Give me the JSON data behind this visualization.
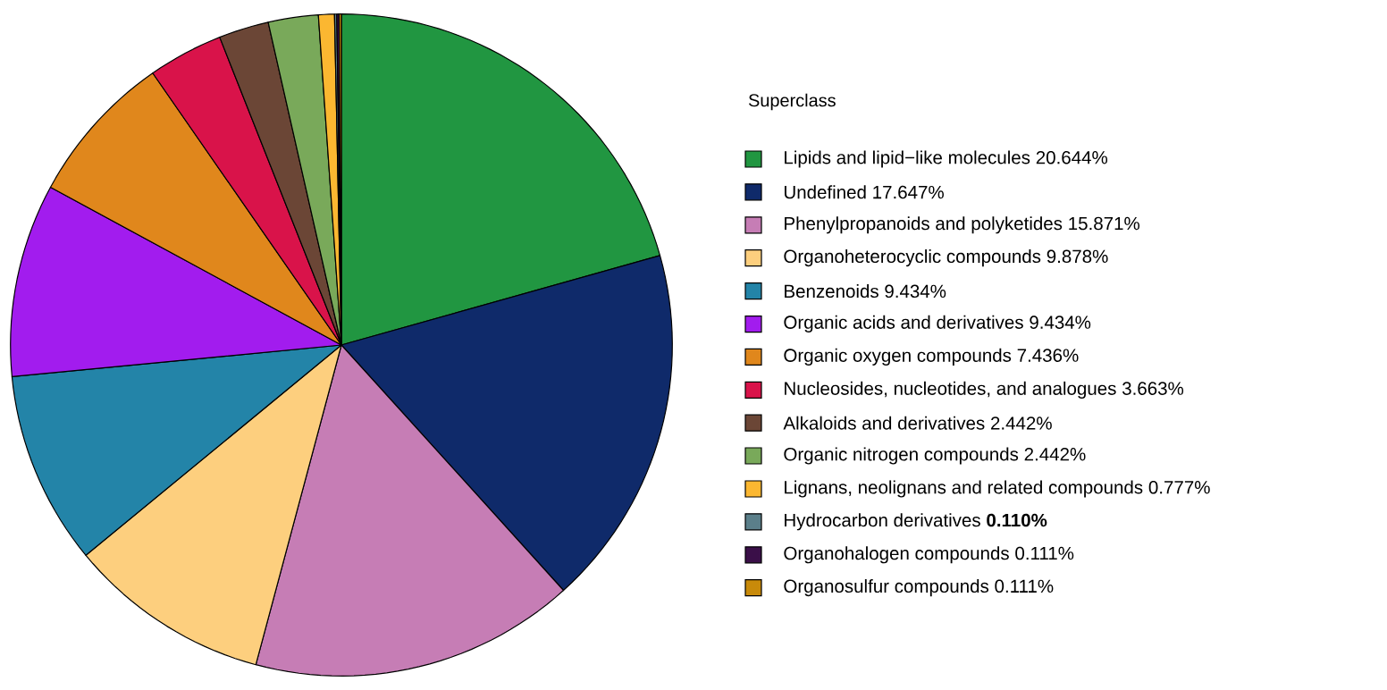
{
  "chart_data": {
    "type": "pie",
    "legend_title": "Superclass",
    "legend": "right",
    "categories": [
      "Lipids and lipid−like molecules",
      "Undefined",
      "Phenylpropanoids and polyketides",
      "Organoheterocyclic compounds",
      "Benzenoids",
      "Organic acids and derivatives",
      "Organic oxygen compounds",
      "Nucleosides, nucleotides, and analogues",
      "Alkaloids and derivatives",
      "Organic nitrogen compounds",
      "Lignans, neolignans and related compounds",
      "Hydrocarbon derivatives",
      "Organohalogen compounds",
      "Organosulfur compounds"
    ],
    "values": [
      20.644,
      17.647,
      15.871,
      9.878,
      9.434,
      9.434,
      7.436,
      3.663,
      2.442,
      2.442,
      0.777,
      0.11,
      0.111,
      0.111
    ],
    "value_labels": [
      "20.644%",
      "17.647%",
      "15.871%",
      "9.878%",
      "9.434%",
      "9.434%",
      "7.436%",
      "3.663%",
      "2.442%",
      "2.442%",
      "0.777%",
      "**0.110%**",
      "0.111%",
      "0.111%"
    ],
    "colors": [
      "#219641",
      "#0f2a6a",
      "#c67db5",
      "#fdcf7e",
      "#2384a8",
      "#a21cee",
      "#e0871c",
      "#d9134a",
      "#6b4636",
      "#79a95a",
      "#fbb731",
      "#5b7f8a",
      "#3a0f48",
      "#c88a0a"
    ]
  }
}
